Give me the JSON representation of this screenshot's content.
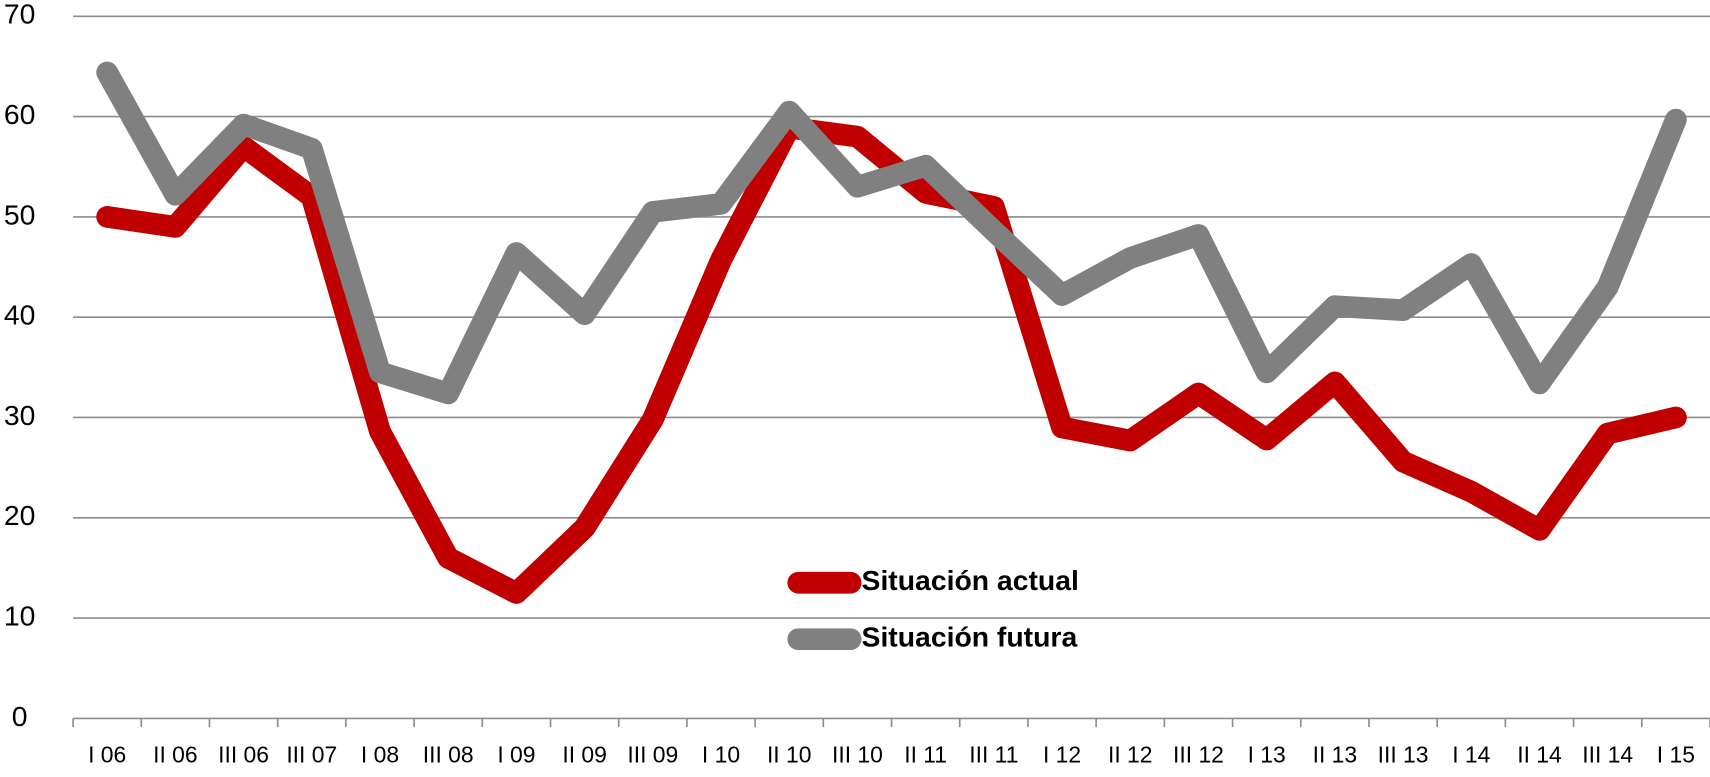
{
  "chart_data": {
    "type": "line",
    "categories": [
      "I 06",
      "II 06",
      "III 06",
      "III 07",
      "I 08",
      "III 08",
      "I 09",
      "II 09",
      "III 09",
      "I 10",
      "II 10",
      "III 10",
      "II 11",
      "III 11",
      "I 12",
      "II 12",
      "III 12",
      "I 13",
      "II 13",
      "III 13",
      "I 14",
      "II 14",
      "III 14",
      "I 15"
    ],
    "series": [
      {
        "name": "Situación actual",
        "color": "#c00000",
        "values": [
          50,
          49,
          57,
          52,
          28.6,
          16,
          12.5,
          19,
          29.8,
          45.7,
          58.9,
          58,
          52.4,
          51,
          29,
          27.7,
          32.4,
          27.8,
          33.5,
          25.6,
          22.6,
          18.8,
          28.4,
          30
        ]
      },
      {
        "name": "Situación futura",
        "color": "#808080",
        "values": [
          64.4,
          52.2,
          59.2,
          56.8,
          34.5,
          32.4,
          46.4,
          40.3,
          50.5,
          51.3,
          60.5,
          53,
          55.1,
          48.6,
          42.2,
          45.9,
          48.2,
          34.5,
          41.1,
          40.7,
          45.3,
          33.4,
          43,
          59.7
        ]
      }
    ],
    "ylim": [
      0,
      70
    ],
    "yticks": [
      0,
      10,
      20,
      30,
      40,
      50,
      60,
      70
    ],
    "grid": true
  }
}
